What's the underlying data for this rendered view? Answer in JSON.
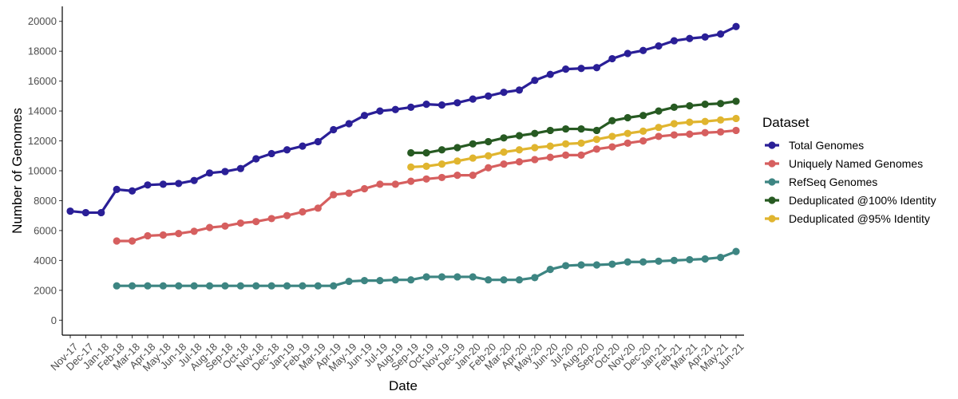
{
  "chart_data": {
    "type": "line",
    "title": "",
    "xlabel": "Date",
    "ylabel": "Number of Genomes",
    "ylim": [
      -1000,
      21000
    ],
    "yticks": [
      0,
      2000,
      4000,
      6000,
      8000,
      10000,
      12000,
      14000,
      16000,
      18000,
      20000
    ],
    "grid": false,
    "legend_title": "Dataset",
    "legend_position": "right",
    "categories": [
      "Nov-17",
      "Dec-17",
      "Jan-18",
      "Feb-18",
      "Mar-18",
      "Apr-18",
      "May-18",
      "Jun-18",
      "Jul-18",
      "Aug-18",
      "Sep-18",
      "Oct-18",
      "Nov-18",
      "Dec-18",
      "Jan-19",
      "Feb-19",
      "Mar-19",
      "Apr-19",
      "May-19",
      "Jun-19",
      "Jul-19",
      "Aug-19",
      "Sep-19",
      "Oct-19",
      "Nov-19",
      "Dec-19",
      "Jan-20",
      "Feb-20",
      "Mar-20",
      "Apr-20",
      "May-20",
      "Jun-20",
      "Jul-20",
      "Aug-20",
      "Sep-20",
      "Oct-20",
      "Nov-20",
      "Dec-20",
      "Jan-21",
      "Feb-21",
      "Mar-21",
      "Apr-21",
      "May-21",
      "Jun-21"
    ],
    "series": [
      {
        "name": "Total Genomes",
        "color": "#2a1f97",
        "values": [
          7300,
          7200,
          7200,
          8750,
          8650,
          9050,
          9100,
          9150,
          9350,
          9850,
          9950,
          10150,
          10800,
          11150,
          11400,
          11650,
          11950,
          12750,
          13150,
          13700,
          14000,
          14100,
          14250,
          14450,
          14400,
          14550,
          14800,
          15000,
          15250,
          15400,
          16050,
          16450,
          16800,
          16850,
          16900,
          17500,
          17850,
          18050,
          18350,
          18700,
          18850,
          18950,
          19150,
          19650
        ]
      },
      {
        "name": "Uniquely Named Genomes",
        "color": "#d65f5f",
        "values": [
          null,
          null,
          null,
          5300,
          5300,
          5650,
          5700,
          5800,
          5950,
          6200,
          6300,
          6500,
          6600,
          6800,
          7000,
          7250,
          7500,
          8400,
          8500,
          8800,
          9100,
          9100,
          9300,
          9450,
          9550,
          9700,
          9700,
          10200,
          10450,
          10600,
          10750,
          10900,
          11050,
          11050,
          11450,
          11600,
          11850,
          12000,
          12300,
          12400,
          12450,
          12550,
          12600,
          12700
        ]
      },
      {
        "name": "RefSeq Genomes",
        "color": "#3d8582",
        "values": [
          null,
          null,
          null,
          2300,
          2300,
          2300,
          2300,
          2300,
          2300,
          2300,
          2300,
          2300,
          2300,
          2300,
          2300,
          2300,
          2300,
          2300,
          2600,
          2650,
          2650,
          2700,
          2700,
          2900,
          2900,
          2900,
          2900,
          2700,
          2700,
          2700,
          2850,
          3400,
          3650,
          3700,
          3700,
          3750,
          3900,
          3900,
          3950,
          4000,
          4050,
          4100,
          4200,
          4600
        ]
      },
      {
        "name": "Deduplicated @100% Identity",
        "color": "#275a22",
        "values": [
          null,
          null,
          null,
          null,
          null,
          null,
          null,
          null,
          null,
          null,
          null,
          null,
          null,
          null,
          null,
          null,
          null,
          null,
          null,
          null,
          null,
          null,
          11200,
          11200,
          11400,
          11550,
          11800,
          11950,
          12200,
          12350,
          12500,
          12700,
          12800,
          12800,
          12700,
          13350,
          13550,
          13700,
          14000,
          14250,
          14350,
          14450,
          14500,
          14650
        ]
      },
      {
        "name": "Deduplicated @95% Identity",
        "color": "#e0b52f",
        "values": [
          null,
          null,
          null,
          null,
          null,
          null,
          null,
          null,
          null,
          null,
          null,
          null,
          null,
          null,
          null,
          null,
          null,
          null,
          null,
          null,
          null,
          null,
          10250,
          10300,
          10450,
          10650,
          10850,
          11000,
          11250,
          11400,
          11550,
          11650,
          11800,
          11850,
          12100,
          12300,
          12500,
          12650,
          12900,
          13150,
          13250,
          13300,
          13400,
          13500
        ]
      }
    ]
  }
}
